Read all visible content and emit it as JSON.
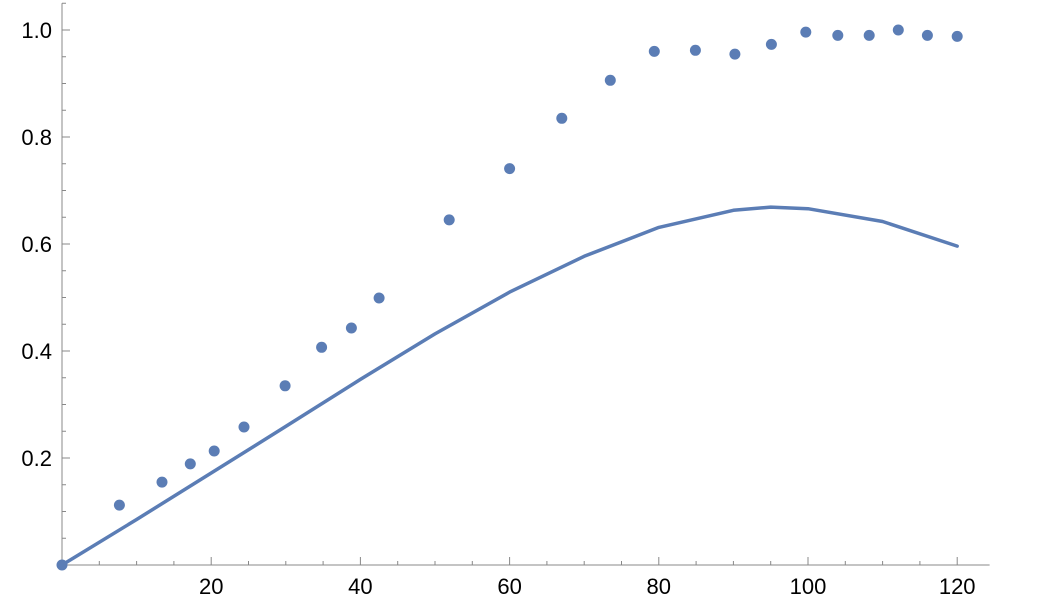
{
  "chart_data": {
    "type": "scatter",
    "title": "",
    "xlabel": "",
    "ylabel": "",
    "xlim": [
      0,
      123
    ],
    "ylim": [
      0,
      1.05
    ],
    "grid": false,
    "x_ticks_major": [
      20,
      40,
      60,
      80,
      100,
      120
    ],
    "x_tick_labels": [
      "20",
      "40",
      "60",
      "80",
      "100",
      "120"
    ],
    "y_ticks_major": [
      0.2,
      0.4,
      0.6,
      0.8,
      1.0
    ],
    "y_tick_labels": [
      "0.2",
      "0.4",
      "0.6",
      "0.8",
      "1.0"
    ],
    "color": "#5b7db5",
    "series": [
      {
        "type": "scatter",
        "points": [
          [
            0,
            0.0
          ],
          [
            7.7,
            0.112
          ],
          [
            13.4,
            0.155
          ],
          [
            17.2,
            0.189
          ],
          [
            20.4,
            0.213
          ],
          [
            24.4,
            0.258
          ],
          [
            29.9,
            0.335
          ],
          [
            34.8,
            0.407
          ],
          [
            38.8,
            0.443
          ],
          [
            42.5,
            0.499
          ],
          [
            51.9,
            0.645
          ],
          [
            60.0,
            0.741
          ],
          [
            67.0,
            0.835
          ],
          [
            73.5,
            0.906
          ],
          [
            79.4,
            0.96
          ],
          [
            84.9,
            0.962
          ],
          [
            90.2,
            0.955
          ],
          [
            95.1,
            0.973
          ],
          [
            99.7,
            0.996
          ],
          [
            104.0,
            0.99
          ],
          [
            108.2,
            0.99
          ],
          [
            112.1,
            1.0
          ],
          [
            116.0,
            0.99
          ],
          [
            120.0,
            0.988
          ]
        ]
      },
      {
        "type": "line",
        "points": [
          [
            0,
            0.0
          ],
          [
            10,
            0.085
          ],
          [
            20,
            0.172
          ],
          [
            30,
            0.259
          ],
          [
            40,
            0.347
          ],
          [
            50,
            0.432
          ],
          [
            60,
            0.51
          ],
          [
            70,
            0.577
          ],
          [
            80,
            0.631
          ],
          [
            90,
            0.663
          ],
          [
            95,
            0.669
          ],
          [
            100,
            0.666
          ],
          [
            110,
            0.642
          ],
          [
            120,
            0.596
          ]
        ]
      }
    ]
  }
}
